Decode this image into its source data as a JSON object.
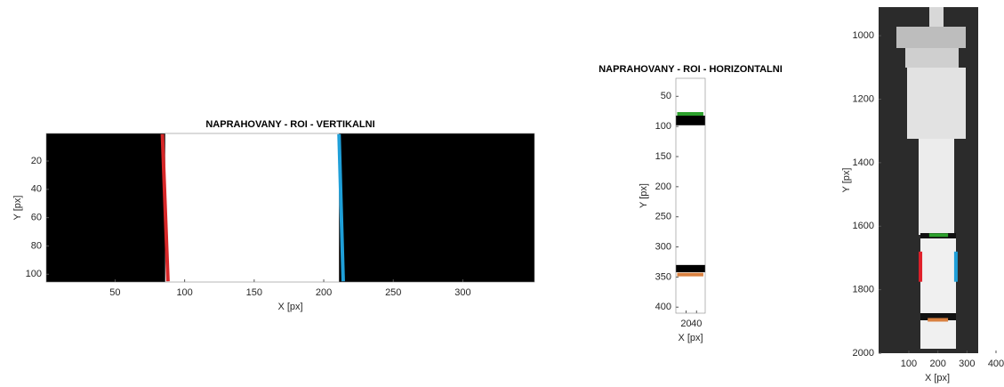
{
  "chart_data": [
    {
      "type": "image",
      "title": "NAPRAHOVANY - ROI - VERTIKALNI",
      "xlabel": "X [px]",
      "ylabel": "Y [px]",
      "xlim": [
        0.5,
        351.5
      ],
      "ylim": [
        0.5,
        105.5
      ],
      "xticks": [
        50,
        100,
        150,
        200,
        250,
        300
      ],
      "yticks": [
        20,
        40,
        60,
        80,
        100
      ],
      "background": "#000000",
      "regions": [
        {
          "x": [
            86,
            211
          ],
          "y": [
            0.5,
            105.5
          ],
          "color": "#ffffff"
        }
      ],
      "segments": [
        {
          "x": [
            84,
            88
          ],
          "y": [
            1,
            105
          ],
          "color": "#d62728"
        },
        {
          "x": [
            211,
            214
          ],
          "y": [
            1,
            105
          ],
          "color": "#1f9fd8"
        }
      ]
    },
    {
      "type": "image",
      "title": "NAPRAHOVANY - ROI - HORIZONTALNI",
      "xlabel": "X [px]",
      "ylabel": "Y [px]",
      "xlim": [
        0.5,
        56.5
      ],
      "ylim": [
        20,
        410
      ],
      "xticks": [
        20,
        40
      ],
      "yticks": [
        50,
        100,
        150,
        200,
        250,
        300,
        350,
        400
      ],
      "background": "#ffffff",
      "regions": [
        {
          "x": [
            0.5,
            56.5
          ],
          "y": [
            82,
            98
          ],
          "color": "#000000"
        },
        {
          "x": [
            0.5,
            56.5
          ],
          "y": [
            330,
            342
          ],
          "color": "#000000"
        }
      ],
      "segments": [
        {
          "x": [
            3,
            53
          ],
          "y": [
            79,
            79
          ],
          "color": "#2ca02c"
        },
        {
          "x": [
            3,
            53
          ],
          "y": [
            346,
            346
          ],
          "color": "#d9803f"
        }
      ]
    },
    {
      "type": "image",
      "xlabel": "X [px]",
      "ylabel": "Y [px]",
      "xlim": [
        -4,
        400
      ],
      "ylim": [
        910,
        2000
      ],
      "xticks": [
        100,
        200,
        300,
        400
      ],
      "yticks": [
        1000,
        1200,
        1400,
        1600,
        1800,
        2000
      ],
      "segments": [
        {
          "x": [
            140,
            140
          ],
          "y": [
            1680,
            1775
          ],
          "color": "#e0202a"
        },
        {
          "x": [
            262,
            262
          ],
          "y": [
            1680,
            1775
          ],
          "color": "#1f9fd8"
        },
        {
          "x": [
            170,
            235
          ],
          "y": [
            1628,
            1628
          ],
          "color": "#2ca02c"
        },
        {
          "x": [
            165,
            235
          ],
          "y": [
            1895,
            1895
          ],
          "color": "#d9803f"
        }
      ]
    }
  ]
}
